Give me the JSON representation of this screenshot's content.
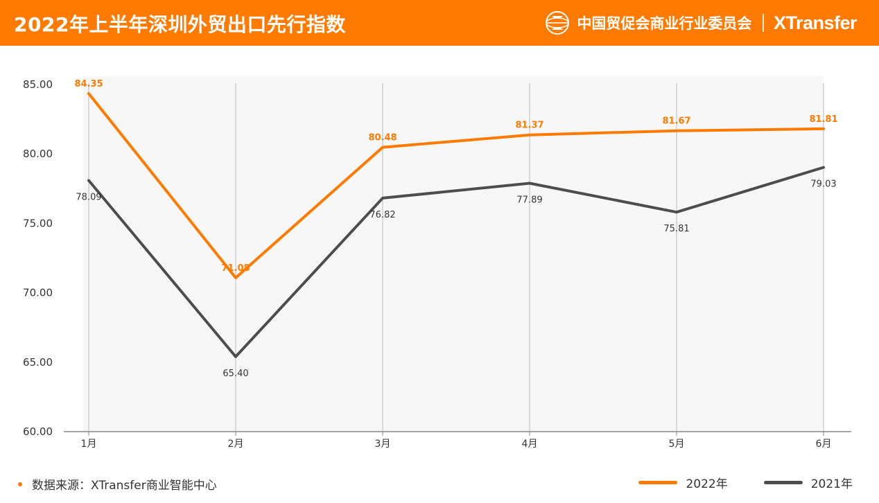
{
  "header": {
    "title": "2022年上半年深圳外贸出口先行指数",
    "org_name": "中国贸促会商业行业委员会",
    "brand": "XTransfer",
    "emblem_icon": "ccpit-emblem-icon"
  },
  "footer": {
    "source_text": "数据来源：XTransfer商业智能中心"
  },
  "colors": {
    "accent": "#ff7a00",
    "series_2021": "#4d4d4d",
    "plot_background": "#f7f7f7",
    "gridline": "#bbbbbb"
  },
  "chart_data": {
    "type": "line",
    "title": "2022年上半年深圳外贸出口先行指数",
    "xlabel": "",
    "ylabel": "",
    "categories": [
      "1月",
      "2月",
      "3月",
      "4月",
      "5月",
      "6月"
    ],
    "ylim": [
      60,
      85
    ],
    "yticks": [
      "60.00",
      "65.00",
      "70.00",
      "75.00",
      "80.00",
      "85.00"
    ],
    "grid": "vertical lines at each category",
    "legend_position": "bottom-right",
    "series": [
      {
        "name": "2022年",
        "color": "#ff7a00",
        "values": [
          84.35,
          71.08,
          80.48,
          81.37,
          81.67,
          81.81
        ],
        "labels": [
          "84.35",
          "71.08",
          "80.48",
          "81.37",
          "81.67",
          "81.81"
        ]
      },
      {
        "name": "2021年",
        "color": "#4d4d4d",
        "values": [
          78.09,
          65.4,
          76.82,
          77.89,
          75.81,
          79.03
        ],
        "labels": [
          "78.09",
          "65.40",
          "76.82",
          "77.89",
          "75.81",
          "79.03"
        ]
      }
    ]
  }
}
